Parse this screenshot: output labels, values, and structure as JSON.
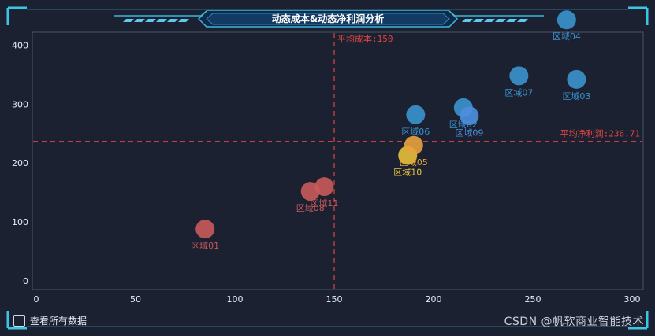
{
  "title": "动态成本&动态净利润分析",
  "footer": {
    "checkbox_label": "查看所有数据",
    "watermark": "CSDN @帆软商业智能技术"
  },
  "chart_data": {
    "type": "scatter",
    "title": "动态成本&动态净利润分析",
    "xlim": [
      0,
      300
    ],
    "ylim": [
      0,
      450
    ],
    "x_ticks": [
      0,
      50,
      100,
      150,
      200,
      250,
      300
    ],
    "y_ticks": [
      0,
      100,
      200,
      300,
      400
    ],
    "grid": false,
    "mark_lines": [
      {
        "axis": "x",
        "value": 150,
        "label": "平均成本:150",
        "color": "#e0453f"
      },
      {
        "axis": "y",
        "value": 236.71,
        "label": "平均净利润:236.71",
        "color": "#e0453f"
      }
    ],
    "points": [
      {
        "label": "区域01",
        "x": 85,
        "y": 88,
        "color": "#c95a5a"
      },
      {
        "label": "区域08",
        "x": 138,
        "y": 152,
        "color": "#c95a5a"
      },
      {
        "label": "区域11",
        "x": 145,
        "y": 160,
        "color": "#c95a5a"
      },
      {
        "label": "区域10",
        "x": 187,
        "y": 213,
        "color": "#e6c23a"
      },
      {
        "label": "区域05",
        "x": 190,
        "y": 230,
        "color": "#e8a33d"
      },
      {
        "label": "区域06",
        "x": 191,
        "y": 282,
        "color": "#3a93cf"
      },
      {
        "label": "区域02",
        "x": 215,
        "y": 294,
        "color": "#3a93cf"
      },
      {
        "label": "区域09",
        "x": 218,
        "y": 280,
        "color": "#4f8fe0"
      },
      {
        "label": "区域07",
        "x": 243,
        "y": 348,
        "color": "#3a93cf"
      },
      {
        "label": "区域03",
        "x": 272,
        "y": 342,
        "color": "#3a93cf"
      },
      {
        "label": "区域04",
        "x": 267,
        "y": 443,
        "color": "#3a93cf"
      }
    ]
  }
}
